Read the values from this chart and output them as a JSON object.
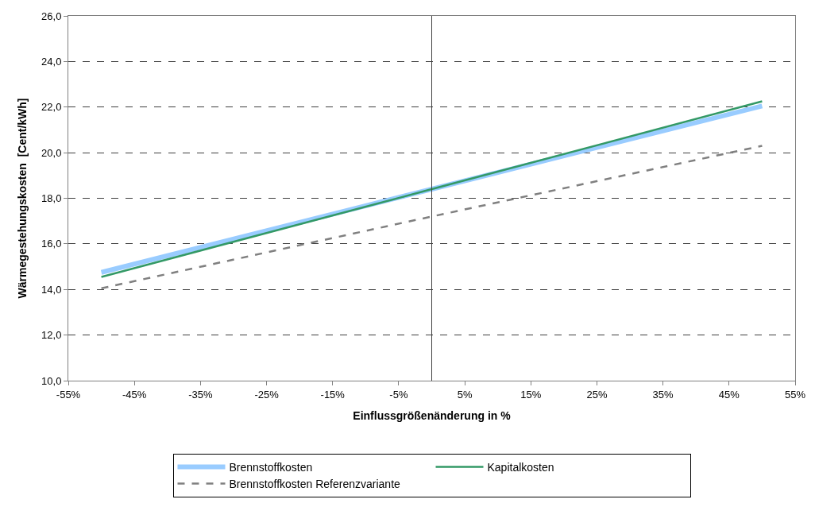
{
  "chart_data": {
    "type": "line",
    "xlabel": "Einflussgrößenänderung in %",
    "ylabel": "Wärmegestehungskosten  [Cent/kWh]",
    "x": [
      -50,
      0,
      50
    ],
    "series": [
      {
        "name": "Brennstoffkosten",
        "color": "#99ccff",
        "values": [
          14.75,
          18.4,
          22.05
        ],
        "line_style": "solid"
      },
      {
        "name": "Kapitalkosten",
        "color": "#339966",
        "values": [
          14.55,
          18.4,
          22.25
        ],
        "line_style": "solid"
      },
      {
        "name": "Brennstoffkosten Referenzvariante",
        "color": "#808080",
        "values": [
          14.05,
          17.2,
          20.3
        ],
        "line_style": "dashed"
      }
    ],
    "xlim": [
      -55,
      55
    ],
    "xticks": [
      {
        "value": -55,
        "label": "-55%"
      },
      {
        "value": -45,
        "label": "-45%"
      },
      {
        "value": -35,
        "label": "-35%"
      },
      {
        "value": -25,
        "label": "-25%"
      },
      {
        "value": -15,
        "label": "-15%"
      },
      {
        "value": -5,
        "label": "-5%"
      },
      {
        "value": 5,
        "label": "5%"
      },
      {
        "value": 15,
        "label": "15%"
      },
      {
        "value": 25,
        "label": "25%"
      },
      {
        "value": 35,
        "label": "35%"
      },
      {
        "value": 45,
        "label": "45%"
      },
      {
        "value": 55,
        "label": "55%"
      }
    ],
    "ylim": [
      10,
      26
    ],
    "yticks": [
      {
        "value": 10,
        "label": "10,0"
      },
      {
        "value": 12,
        "label": "12,0"
      },
      {
        "value": 14,
        "label": "14,0"
      },
      {
        "value": 16,
        "label": "16,0"
      },
      {
        "value": 18,
        "label": "18,0"
      },
      {
        "value": 20,
        "label": "20,0"
      },
      {
        "value": 22,
        "label": "22,0"
      },
      {
        "value": 24,
        "label": "24,0"
      },
      {
        "value": 26,
        "label": "26,0"
      }
    ],
    "ref_lines": [
      {
        "axis": "x",
        "value": 0,
        "color": "#404040",
        "line_style": "solid"
      }
    ],
    "grid": "y",
    "legend": "bottom",
    "marker": "none"
  }
}
